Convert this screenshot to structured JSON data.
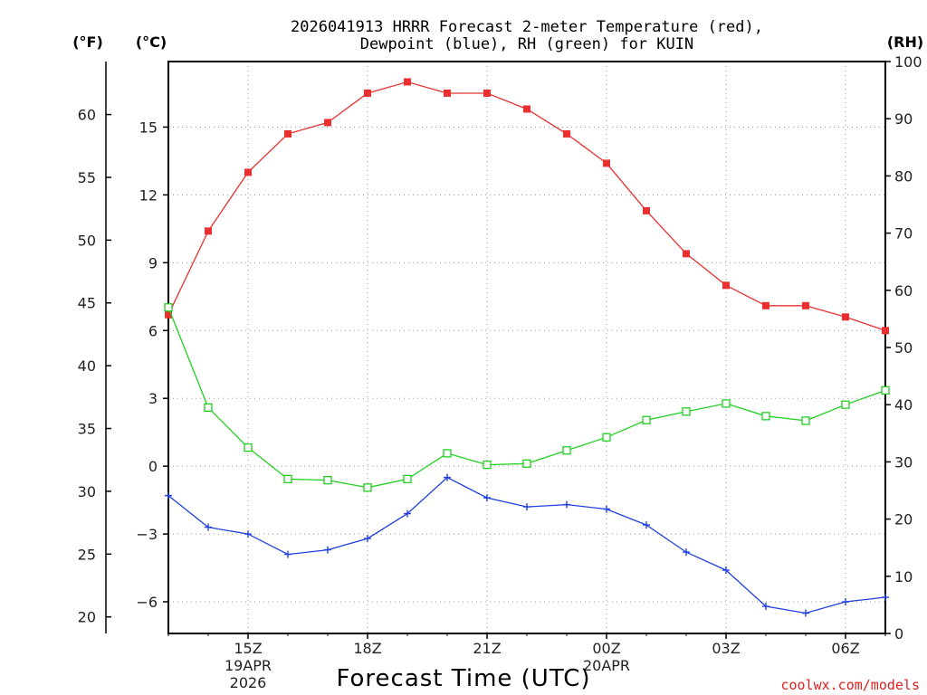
{
  "chart_data": {
    "type": "line",
    "title_line1": "2026041913 HRRR Forecast 2-meter Temperature (red),",
    "title_line2": "Dewpoint (blue), RH (green) for KUIN",
    "xlabel": "Forecast Time (UTC)",
    "credit": "coolwx.com/models",
    "unit_left_outer": "(°F)",
    "unit_left_inner": "(°C)",
    "unit_right": "(RH)",
    "x_hours": [
      13,
      14,
      15,
      16,
      17,
      18,
      19,
      20,
      21,
      22,
      23,
      24,
      25,
      26,
      27,
      28,
      29,
      30,
      31
    ],
    "xlim": [
      13,
      31
    ],
    "x_ticks": [
      {
        "h": 15,
        "label": "15Z",
        "sub1": "19APR",
        "sub2": "2026"
      },
      {
        "h": 18,
        "label": "18Z",
        "sub1": "",
        "sub2": ""
      },
      {
        "h": 21,
        "label": "21Z",
        "sub1": "",
        "sub2": ""
      },
      {
        "h": 24,
        "label": "00Z",
        "sub1": "20APR",
        "sub2": ""
      },
      {
        "h": 27,
        "label": "03Z",
        "sub1": "",
        "sub2": ""
      },
      {
        "h": 30,
        "label": "06Z",
        "sub1": "",
        "sub2": ""
      }
    ],
    "c_ticks": [
      "-6",
      "−3",
      "0",
      "3",
      "6",
      "9",
      "12",
      "15"
    ],
    "c_tick_values": [
      -6,
      -3,
      0,
      3,
      6,
      9,
      12,
      15
    ],
    "c_tick_labels": [
      "−6",
      "−3",
      "0",
      "3",
      "6",
      "9",
      "12",
      "15"
    ],
    "ylim_c": [
      -7.4,
      17.9
    ],
    "f_ticks": [
      20,
      25,
      30,
      35,
      40,
      45,
      50,
      55,
      60
    ],
    "rh_ticks": [
      0,
      10,
      20,
      30,
      40,
      50,
      60,
      70,
      80,
      90,
      100
    ],
    "ylim_rh": [
      0,
      100
    ],
    "series": [
      {
        "name": "Temperature",
        "unit": "C",
        "color": "#e83030",
        "marker": "filled-square",
        "values": [
          6.7,
          10.4,
          13.0,
          14.7,
          15.2,
          16.5,
          17.0,
          16.5,
          16.5,
          15.8,
          14.7,
          13.4,
          11.3,
          9.4,
          8.0,
          7.1,
          7.1,
          6.6,
          6.0
        ]
      },
      {
        "name": "Dewpoint",
        "unit": "C",
        "color": "#2040e0",
        "marker": "plus",
        "values": [
          -1.3,
          -2.7,
          -3.0,
          -3.9,
          -3.7,
          -3.2,
          -2.1,
          -0.5,
          -1.4,
          -1.8,
          -1.7,
          -1.9,
          -2.6,
          -3.8,
          -4.6,
          -6.2,
          -6.5,
          -6.0,
          -5.8
        ]
      },
      {
        "name": "RH",
        "unit": "%",
        "color": "#20d020",
        "marker": "open-square",
        "values": [
          57,
          39.5,
          32.5,
          27,
          26.8,
          25.5,
          27,
          31.5,
          29.5,
          29.7,
          32,
          34.3,
          37.3,
          38.8,
          40.2,
          38,
          37.2,
          40,
          42.5
        ]
      }
    ]
  }
}
